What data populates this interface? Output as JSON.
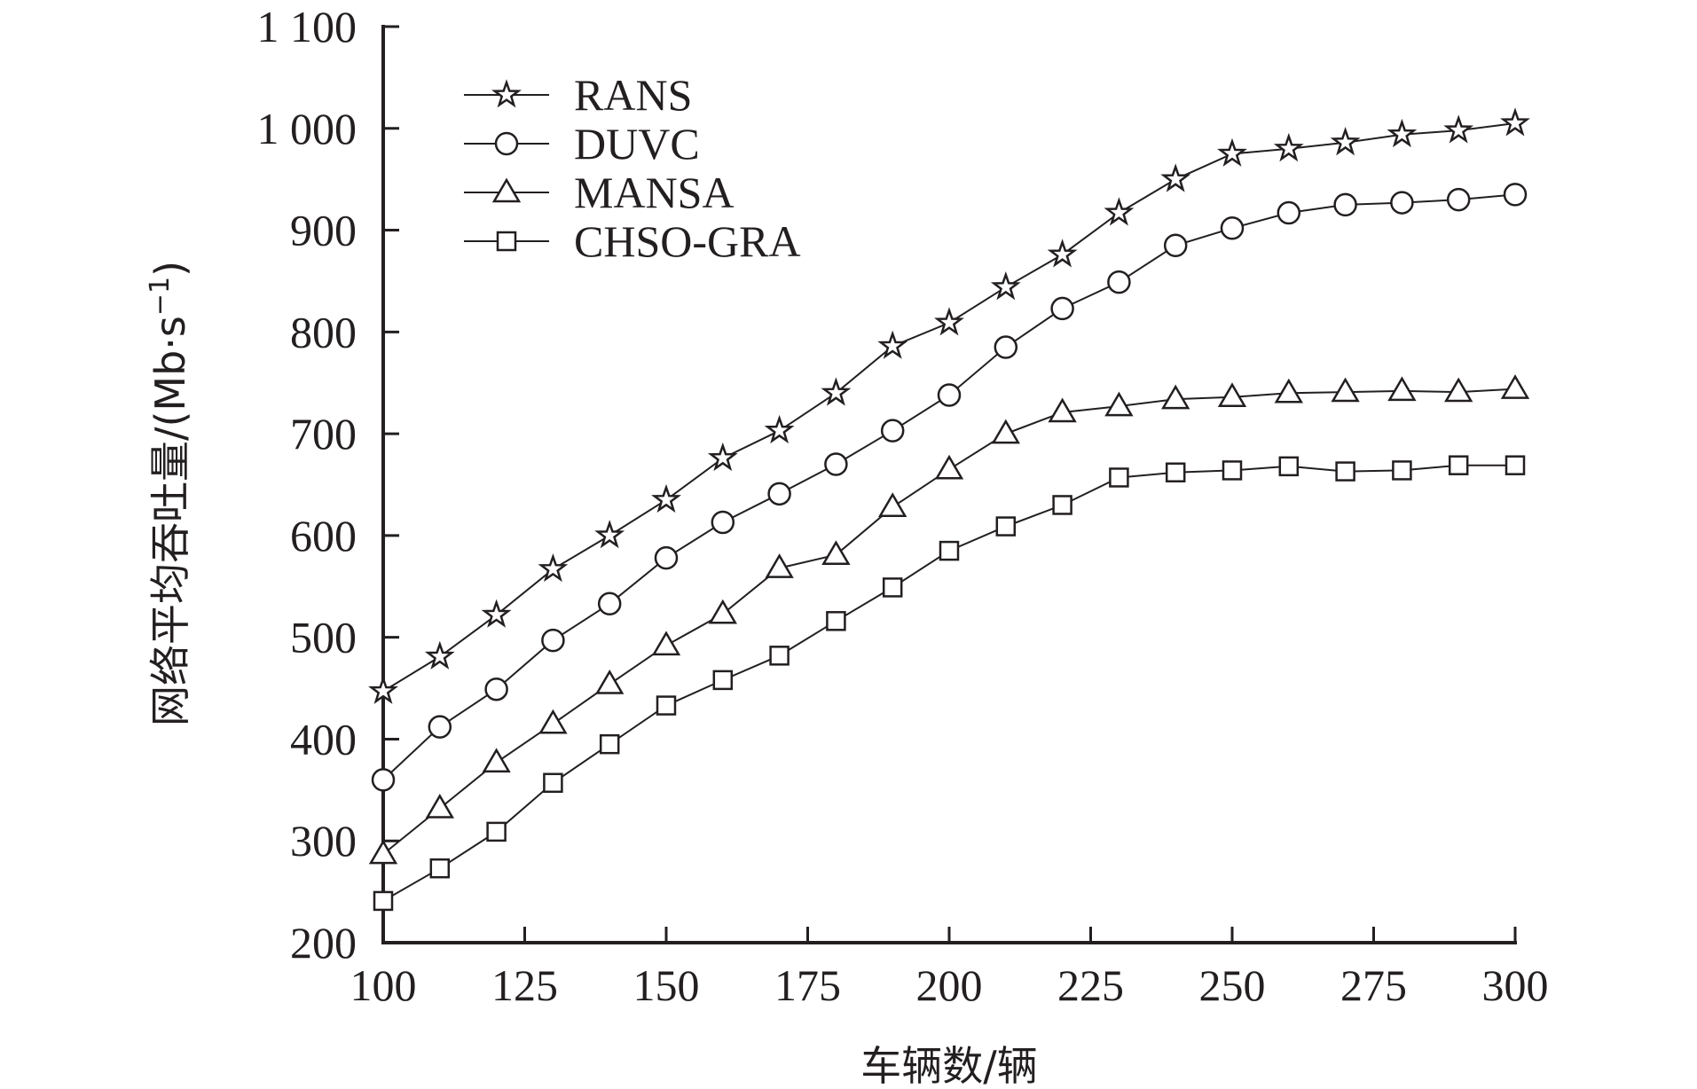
{
  "chart_data": {
    "type": "line",
    "title": "",
    "xlabel": "车辆数/辆",
    "ylabel": "网络平均吞吐量/(Mb·s",
    "ylabel_sup": "−1",
    "ylabel_close": ")",
    "xlim": [
      100,
      300
    ],
    "ylim": [
      200,
      1100
    ],
    "x_ticks": [
      100,
      125,
      150,
      175,
      200,
      225,
      250,
      275,
      300
    ],
    "x_tick_labels": [
      "100",
      "125",
      "150",
      "175",
      "200",
      "225",
      "250",
      "275",
      "300"
    ],
    "y_ticks": [
      200,
      300,
      400,
      500,
      600,
      700,
      800,
      900,
      1000,
      1100
    ],
    "y_tick_labels": [
      "200",
      "300",
      "400",
      "500",
      "600",
      "700",
      "800",
      "900",
      "1 000",
      "1 100"
    ],
    "grid": false,
    "legend_position": "top-left",
    "x": [
      100,
      110,
      120,
      130,
      140,
      150,
      160,
      170,
      180,
      190,
      200,
      210,
      220,
      230,
      240,
      250,
      260,
      270,
      280,
      290,
      300
    ],
    "series": [
      {
        "name": "RANS",
        "marker": "star",
        "values": [
          447,
          481,
          522,
          567,
          600,
          635,
          676,
          703,
          740,
          786,
          809,
          844,
          876,
          917,
          950,
          975,
          980,
          986,
          994,
          998,
          1005
        ]
      },
      {
        "name": "DUVC",
        "marker": "circle",
        "values": [
          360,
          412,
          449,
          497,
          533,
          578,
          613,
          641,
          670,
          703,
          738,
          785,
          823,
          849,
          885,
          902,
          917,
          925,
          927,
          930,
          935
        ]
      },
      {
        "name": "MANSA",
        "marker": "triangle",
        "values": [
          287,
          332,
          377,
          415,
          454,
          492,
          523,
          568,
          581,
          628,
          665,
          700,
          721,
          727,
          734,
          736,
          740,
          741,
          742,
          741,
          744
        ]
      },
      {
        "name": "CHSO-GRA",
        "marker": "square",
        "values": [
          241,
          273,
          309,
          357,
          395,
          433,
          458,
          482,
          516,
          549,
          585,
          609,
          630,
          657,
          662,
          664,
          668,
          663,
          664,
          669,
          669
        ]
      }
    ]
  }
}
